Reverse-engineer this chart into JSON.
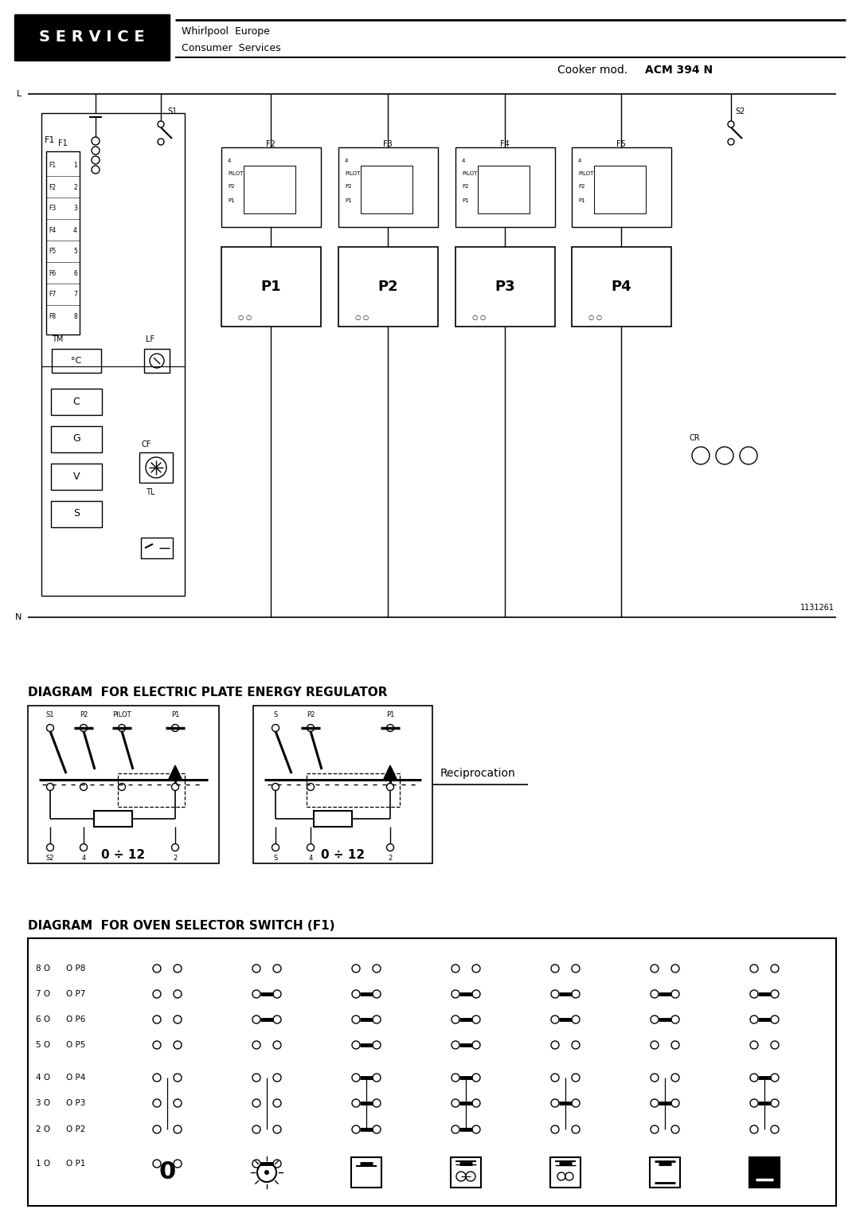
{
  "title_service": "S E R V I C E",
  "company_line1": "Whirlpool  Europe",
  "company_line2": "Consumer  Services",
  "cooker_model_prefix": "Cooker mod.",
  "cooker_model_bold": "ACM 394 N",
  "diagram1_title": "DIAGRAM  FOR ELECTRIC PLATE ENERGY REGULATOR",
  "diagram1_label": "0 ÷ 12",
  "diagram1_reciprocation": "Reciprocation",
  "diagram1_box1_top_labels": [
    "S1",
    "P2",
    "PILOT",
    "P1"
  ],
  "diagram1_box1_bot_labels": [
    "S2",
    "4",
    "2"
  ],
  "diagram1_box2_top_labels": [
    "S",
    "P2",
    "P1"
  ],
  "diagram1_box2_bot_labels": [
    "S",
    "4",
    "2"
  ],
  "diagram2_title": "DIAGRAM  FOR OVEN SELECTOR SWITCH (F1)",
  "row_labels_left": [
    "8 O",
    "7 O",
    "6 O",
    "5 O",
    "4 O",
    "3 O",
    "2 O",
    "1 O"
  ],
  "port_labels": [
    "O P8",
    "O P7",
    "O P6",
    "O P5",
    "O P4",
    "O P3",
    "O P2",
    "O P1"
  ],
  "ref_number": "1131261",
  "bg": "#ffffff",
  "lc": "#000000",
  "header_bg": "#000000",
  "header_fg": "#ffffff",
  "terminal_labels_left": [
    "F1",
    "F2",
    "F3",
    "F4",
    "F5",
    "F6",
    "F7",
    "F8"
  ],
  "terminal_labels_right": [
    "1",
    "2",
    "3",
    "4",
    "5",
    "6",
    "7",
    "8"
  ],
  "hob_names": [
    "P1",
    "P2",
    "P3",
    "P4"
  ],
  "fuse_names": [
    "F2",
    "F3",
    "F4",
    "F5"
  ],
  "btn_labels": [
    "C",
    "G",
    "V",
    "S"
  ]
}
